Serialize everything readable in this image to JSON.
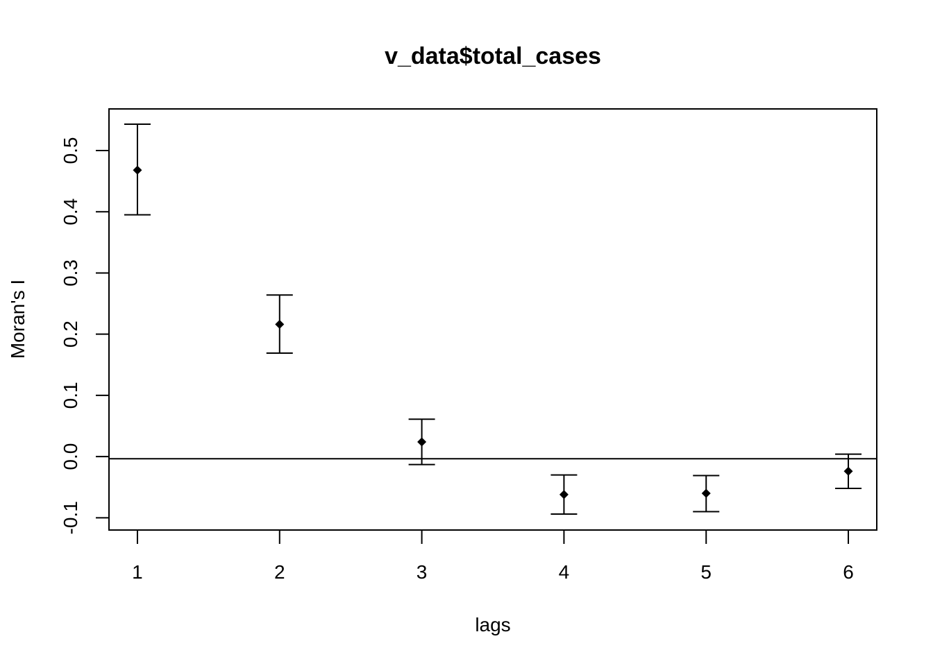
{
  "chart_data": {
    "type": "scatter",
    "title": "v_data$total_cases",
    "xlabel": "lags",
    "ylabel": "Moran's  I",
    "x": [
      1,
      2,
      3,
      4,
      5,
      6
    ],
    "y": [
      0.468,
      0.216,
      0.024,
      -0.062,
      -0.06,
      -0.024
    ],
    "lower": [
      0.395,
      0.169,
      -0.013,
      -0.094,
      -0.09,
      -0.052
    ],
    "upper": [
      0.543,
      0.264,
      0.061,
      -0.03,
      -0.031,
      0.004
    ],
    "xticks": [
      "1",
      "2",
      "3",
      "4",
      "5",
      "6"
    ],
    "yticks": [
      "-0.1",
      "0.0",
      "0.1",
      "0.2",
      "0.3",
      "0.4",
      "0.5"
    ],
    "ytick_values": [
      -0.1,
      0.0,
      0.1,
      0.2,
      0.3,
      0.4,
      0.5
    ],
    "xlim": [
      0.8,
      6.2
    ],
    "ylim": [
      -0.12,
      0.568
    ],
    "reference_line_y": -0.0035,
    "grid": false,
    "legend": "none"
  }
}
